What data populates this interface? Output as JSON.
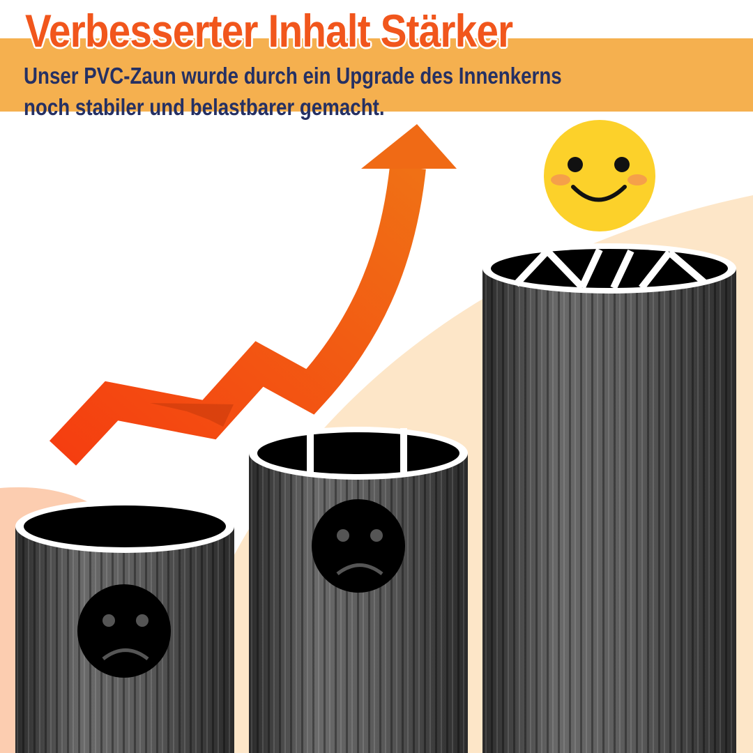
{
  "header": {
    "title": "Verbesserter Inhalt Stärker",
    "subtitle_line1": "Unser PVC-Zaun wurde durch ein Upgrade des Innenkerns",
    "subtitle_line2": "noch stabiler und belastbarer gemacht."
  },
  "colors": {
    "band": "#f5b04f",
    "title": "#f1561c",
    "subtitle": "#253063",
    "arrow": "#f25a14",
    "pillar": "#555555",
    "happy_face": "#fcd12a"
  },
  "icons": [
    "growth-arrow-icon",
    "happy-face-icon",
    "sad-face-icon",
    "sad-face-icon"
  ]
}
